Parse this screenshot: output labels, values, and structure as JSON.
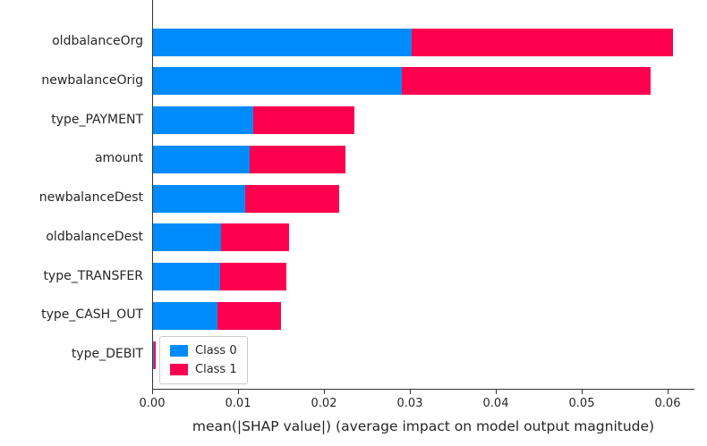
{
  "chart_data": {
    "type": "bar",
    "orientation": "horizontal-stacked",
    "title": "",
    "xlabel": "mean(|SHAP value|) (average impact on model output magnitude)",
    "ylabel": "",
    "categories": [
      "oldbalanceOrg",
      "newbalanceOrig",
      "type_PAYMENT",
      "amount",
      "newbalanceDest",
      "oldbalanceDest",
      "type_TRANSFER",
      "type_CASH_OUT",
      "type_DEBIT"
    ],
    "series": [
      {
        "name": "Class 0",
        "color": "#008bfb",
        "values": [
          0.0301,
          0.029,
          0.0117,
          0.0113,
          0.0107,
          0.0079,
          0.0078,
          0.0075,
          0.0001
        ]
      },
      {
        "name": "Class 1",
        "color": "#ff0051",
        "values": [
          0.0304,
          0.0289,
          0.0117,
          0.0111,
          0.011,
          0.0079,
          0.0077,
          0.0074,
          0.0002
        ]
      }
    ],
    "x_ticks": {
      "labels": [
        "0.00",
        "0.01",
        "0.02",
        "0.03",
        "0.04",
        "0.05",
        "0.06"
      ],
      "values": [
        0.0,
        0.01,
        0.02,
        0.03,
        0.04,
        0.05,
        0.06
      ]
    },
    "xlim": [
      0,
      0.0625
    ],
    "grid": false,
    "legend_position": "lower-left-inside"
  }
}
